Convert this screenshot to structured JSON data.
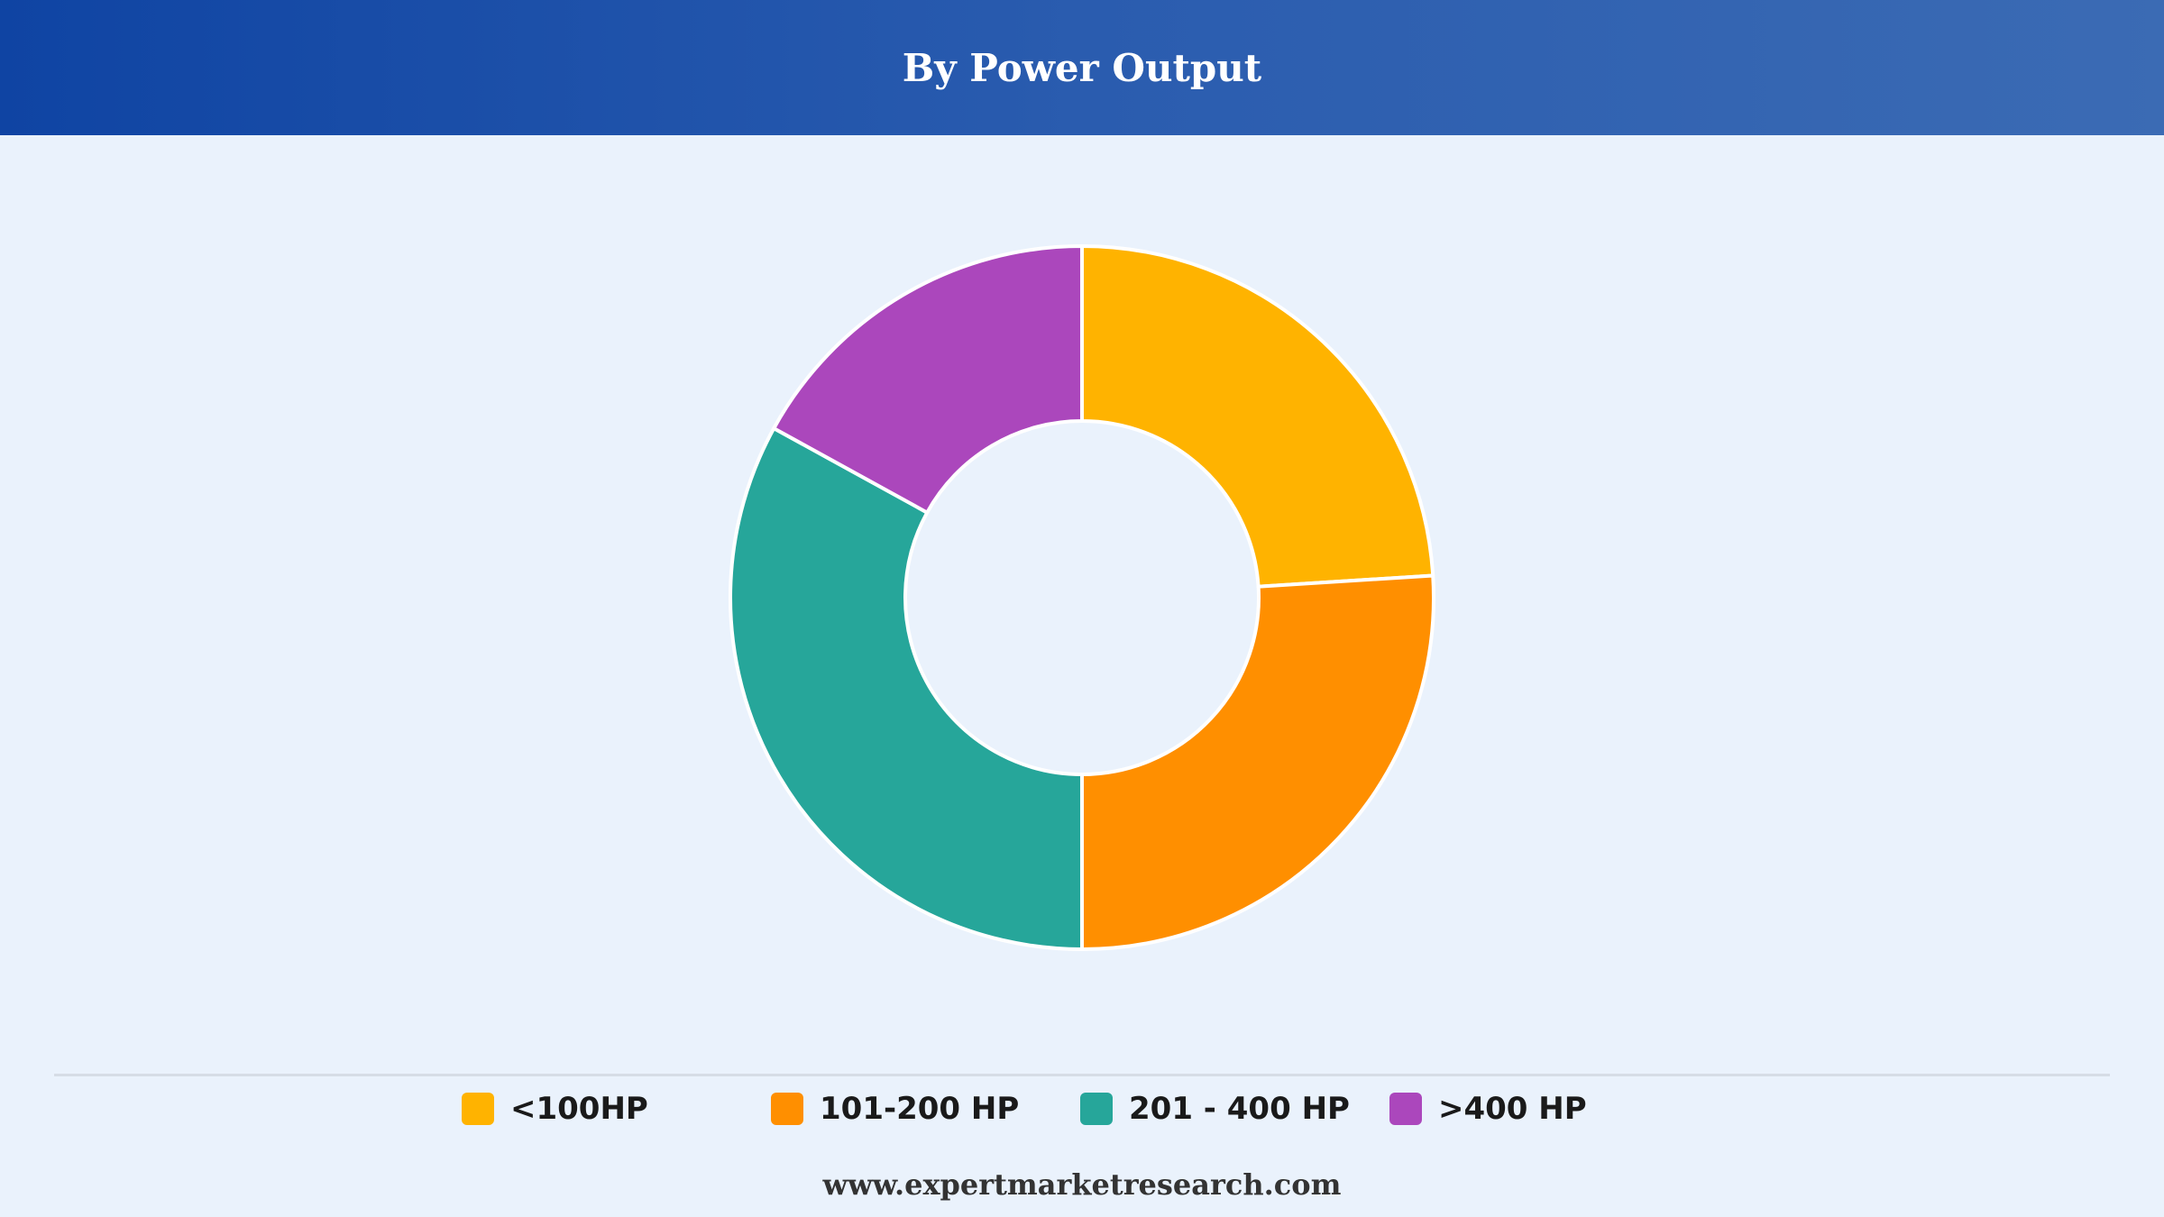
{
  "header": {
    "title": "By Power Output"
  },
  "chart_data": {
    "type": "pie",
    "variant": "donut",
    "title": "By Power Output",
    "categories": [
      "<100HP",
      "101-200 HP",
      "201 - 400 HP",
      ">400 HP"
    ],
    "values": [
      24,
      26,
      33,
      17
    ],
    "colors": [
      "#ffb300",
      "#ff8f00",
      "#26a69a",
      "#ab47bc"
    ],
    "start_angle_deg": 0,
    "direction": "clockwise",
    "slice_border_color": "#ffffff",
    "legend_position": "bottom"
  },
  "legend": {
    "items": [
      {
        "label": "<100HP",
        "color": "#ffb300"
      },
      {
        "label": "101-200 HP",
        "color": "#ff8f00"
      },
      {
        "label": "201 - 400 HP",
        "color": "#26a69a"
      },
      {
        "label": ">400 HP",
        "color": "#ab47bc"
      }
    ]
  },
  "footer": {
    "source": "www.expertmarketresearch.com"
  },
  "colors": {
    "header_start": "#0f44a3",
    "header_end": "#3b6bb4",
    "background": "#eaf2fc"
  }
}
